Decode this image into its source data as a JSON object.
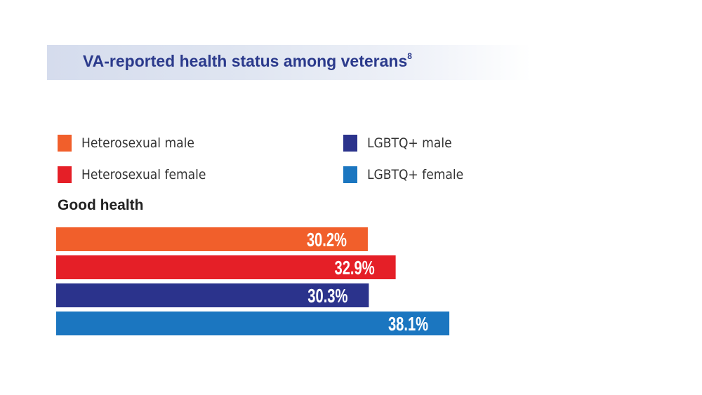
{
  "title": "VA-reported health status among veterans",
  "title_sup": "8",
  "legend": [
    {
      "label": "Heterosexual male",
      "color": "#f15f2b"
    },
    {
      "label": "Heterosexual female",
      "color": "#e51f27"
    },
    {
      "label": "LGBTQ+ male",
      "color": "#2b338c"
    },
    {
      "label": "LGBTQ+ female",
      "color": "#1b76c0"
    }
  ],
  "chart_data": {
    "type": "bar",
    "orientation": "horizontal",
    "title": "VA-reported health status among veterans",
    "group": "Good health",
    "unit": "%",
    "series": [
      {
        "name": "Heterosexual male",
        "value": 30.2,
        "label": "30.2%",
        "color": "#f15f2b"
      },
      {
        "name": "Heterosexual female",
        "value": 32.9,
        "label": "32.9%",
        "color": "#e51f27"
      },
      {
        "name": "LGBTQ+ male",
        "value": 30.3,
        "label": "30.3%",
        "color": "#2b338c"
      },
      {
        "name": "LGBTQ+ female",
        "value": 38.1,
        "label": "38.1%",
        "color": "#1b76c0"
      }
    ],
    "legend_position": "top",
    "grid": false
  }
}
